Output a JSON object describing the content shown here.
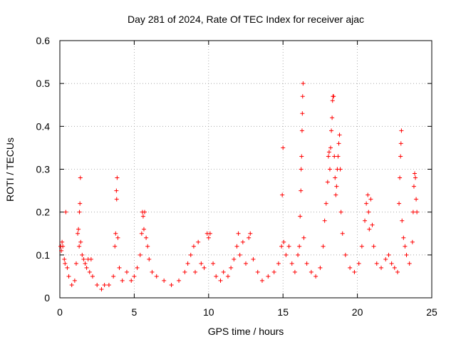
{
  "chart_data": {
    "type": "scatter",
    "title": "Day 281 of 2024, Rate Of TEC Index for receiver ajac",
    "xlabel": "GPS time / hours",
    "ylabel": "ROTI / TECUs",
    "xlim": [
      0,
      25
    ],
    "ylim": [
      0,
      0.6
    ],
    "xticks": [
      0,
      5,
      10,
      15,
      20,
      25
    ],
    "yticks": [
      0,
      0.1,
      0.2,
      0.3,
      0.4,
      0.5,
      0.6
    ],
    "xtick_labels": [
      "0",
      "5",
      "10",
      "15",
      "20",
      "25"
    ],
    "ytick_labels": [
      "0",
      "0.1",
      "0.2",
      "0.3",
      "0.4",
      "0.5",
      "0.6"
    ],
    "grid": true,
    "marker": "+",
    "color": "#ff0000",
    "series": [
      {
        "name": "ROTI",
        "points": [
          [
            0.05,
            0.12
          ],
          [
            0.1,
            0.11
          ],
          [
            0.15,
            0.13
          ],
          [
            0.2,
            0.12
          ],
          [
            0.3,
            0.09
          ],
          [
            0.35,
            0.08
          ],
          [
            0.4,
            0.2
          ],
          [
            0.5,
            0.07
          ],
          [
            0.6,
            0.05
          ],
          [
            0.8,
            0.03
          ],
          [
            1.0,
            0.04
          ],
          [
            1.1,
            0.08
          ],
          [
            1.2,
            0.15
          ],
          [
            1.25,
            0.16
          ],
          [
            1.3,
            0.12
          ],
          [
            1.32,
            0.2
          ],
          [
            1.35,
            0.22
          ],
          [
            1.38,
            0.28
          ],
          [
            1.4,
            0.13
          ],
          [
            1.5,
            0.1
          ],
          [
            1.6,
            0.09
          ],
          [
            1.7,
            0.08
          ],
          [
            1.8,
            0.07
          ],
          [
            1.9,
            0.09
          ],
          [
            2.0,
            0.06
          ],
          [
            2.1,
            0.09
          ],
          [
            2.2,
            0.05
          ],
          [
            2.5,
            0.03
          ],
          [
            2.8,
            0.02
          ],
          [
            3.0,
            0.03
          ],
          [
            3.3,
            0.03
          ],
          [
            3.6,
            0.05
          ],
          [
            3.7,
            0.12
          ],
          [
            3.75,
            0.15
          ],
          [
            3.8,
            0.25
          ],
          [
            3.82,
            0.23
          ],
          [
            3.85,
            0.28
          ],
          [
            3.9,
            0.14
          ],
          [
            4.0,
            0.07
          ],
          [
            4.2,
            0.04
          ],
          [
            4.5,
            0.06
          ],
          [
            4.8,
            0.04
          ],
          [
            5.0,
            0.05
          ],
          [
            5.2,
            0.07
          ],
          [
            5.4,
            0.1
          ],
          [
            5.5,
            0.15
          ],
          [
            5.55,
            0.2
          ],
          [
            5.6,
            0.19
          ],
          [
            5.65,
            0.16
          ],
          [
            5.7,
            0.2
          ],
          [
            5.8,
            0.14
          ],
          [
            5.9,
            0.12
          ],
          [
            6.0,
            0.09
          ],
          [
            6.2,
            0.06
          ],
          [
            6.5,
            0.05
          ],
          [
            7.0,
            0.04
          ],
          [
            7.5,
            0.03
          ],
          [
            8.0,
            0.04
          ],
          [
            8.4,
            0.06
          ],
          [
            8.6,
            0.08
          ],
          [
            8.8,
            0.1
          ],
          [
            9.0,
            0.12
          ],
          [
            9.1,
            0.06
          ],
          [
            9.3,
            0.13
          ],
          [
            9.5,
            0.08
          ],
          [
            9.7,
            0.07
          ],
          [
            9.9,
            0.15
          ],
          [
            10.0,
            0.14
          ],
          [
            10.1,
            0.15
          ],
          [
            10.3,
            0.08
          ],
          [
            10.5,
            0.05
          ],
          [
            10.8,
            0.04
          ],
          [
            11.0,
            0.06
          ],
          [
            11.3,
            0.05
          ],
          [
            11.5,
            0.07
          ],
          [
            11.7,
            0.09
          ],
          [
            11.9,
            0.12
          ],
          [
            12.0,
            0.15
          ],
          [
            12.1,
            0.1
          ],
          [
            12.3,
            0.13
          ],
          [
            12.5,
            0.08
          ],
          [
            12.7,
            0.14
          ],
          [
            12.8,
            0.15
          ],
          [
            13.0,
            0.09
          ],
          [
            13.3,
            0.06
          ],
          [
            13.6,
            0.04
          ],
          [
            14.0,
            0.05
          ],
          [
            14.4,
            0.06
          ],
          [
            14.7,
            0.08
          ],
          [
            14.9,
            0.12
          ],
          [
            14.95,
            0.24
          ],
          [
            15.0,
            0.35
          ],
          [
            15.05,
            0.13
          ],
          [
            15.2,
            0.1
          ],
          [
            15.4,
            0.12
          ],
          [
            15.6,
            0.08
          ],
          [
            15.8,
            0.06
          ],
          [
            16.0,
            0.1
          ],
          [
            16.1,
            0.12
          ],
          [
            16.15,
            0.19
          ],
          [
            16.2,
            0.25
          ],
          [
            16.22,
            0.3
          ],
          [
            16.25,
            0.33
          ],
          [
            16.28,
            0.39
          ],
          [
            16.3,
            0.43
          ],
          [
            16.32,
            0.47
          ],
          [
            16.35,
            0.5
          ],
          [
            16.4,
            0.14
          ],
          [
            16.6,
            0.08
          ],
          [
            16.9,
            0.06
          ],
          [
            17.2,
            0.05
          ],
          [
            17.5,
            0.07
          ],
          [
            17.7,
            0.12
          ],
          [
            17.8,
            0.18
          ],
          [
            17.9,
            0.22
          ],
          [
            18.0,
            0.27
          ],
          [
            18.05,
            0.33
          ],
          [
            18.1,
            0.34
          ],
          [
            18.15,
            0.3
          ],
          [
            18.2,
            0.35
          ],
          [
            18.25,
            0.39
          ],
          [
            18.3,
            0.42
          ],
          [
            18.33,
            0.46
          ],
          [
            18.36,
            0.47
          ],
          [
            18.4,
            0.47
          ],
          [
            18.45,
            0.33
          ],
          [
            18.5,
            0.28
          ],
          [
            18.55,
            0.24
          ],
          [
            18.6,
            0.26
          ],
          [
            18.65,
            0.3
          ],
          [
            18.7,
            0.33
          ],
          [
            18.75,
            0.36
          ],
          [
            18.8,
            0.38
          ],
          [
            18.85,
            0.3
          ],
          [
            18.9,
            0.2
          ],
          [
            19.0,
            0.15
          ],
          [
            19.2,
            0.1
          ],
          [
            19.5,
            0.07
          ],
          [
            19.8,
            0.06
          ],
          [
            20.1,
            0.08
          ],
          [
            20.3,
            0.12
          ],
          [
            20.5,
            0.18
          ],
          [
            20.6,
            0.22
          ],
          [
            20.7,
            0.24
          ],
          [
            20.75,
            0.2
          ],
          [
            20.8,
            0.16
          ],
          [
            20.9,
            0.23
          ],
          [
            21.0,
            0.17
          ],
          [
            21.1,
            0.12
          ],
          [
            21.3,
            0.08
          ],
          [
            21.6,
            0.07
          ],
          [
            21.9,
            0.09
          ],
          [
            22.1,
            0.1
          ],
          [
            22.3,
            0.08
          ],
          [
            22.5,
            0.07
          ],
          [
            22.7,
            0.06
          ],
          [
            22.8,
            0.22
          ],
          [
            22.85,
            0.28
          ],
          [
            22.9,
            0.33
          ],
          [
            22.93,
            0.36
          ],
          [
            22.96,
            0.39
          ],
          [
            23.0,
            0.18
          ],
          [
            23.1,
            0.14
          ],
          [
            23.2,
            0.12
          ],
          [
            23.3,
            0.1
          ],
          [
            23.5,
            0.08
          ],
          [
            23.7,
            0.13
          ],
          [
            23.75,
            0.2
          ],
          [
            23.8,
            0.26
          ],
          [
            23.85,
            0.29
          ],
          [
            23.9,
            0.28
          ],
          [
            23.95,
            0.23
          ],
          [
            24.0,
            0.2
          ]
        ]
      }
    ]
  }
}
